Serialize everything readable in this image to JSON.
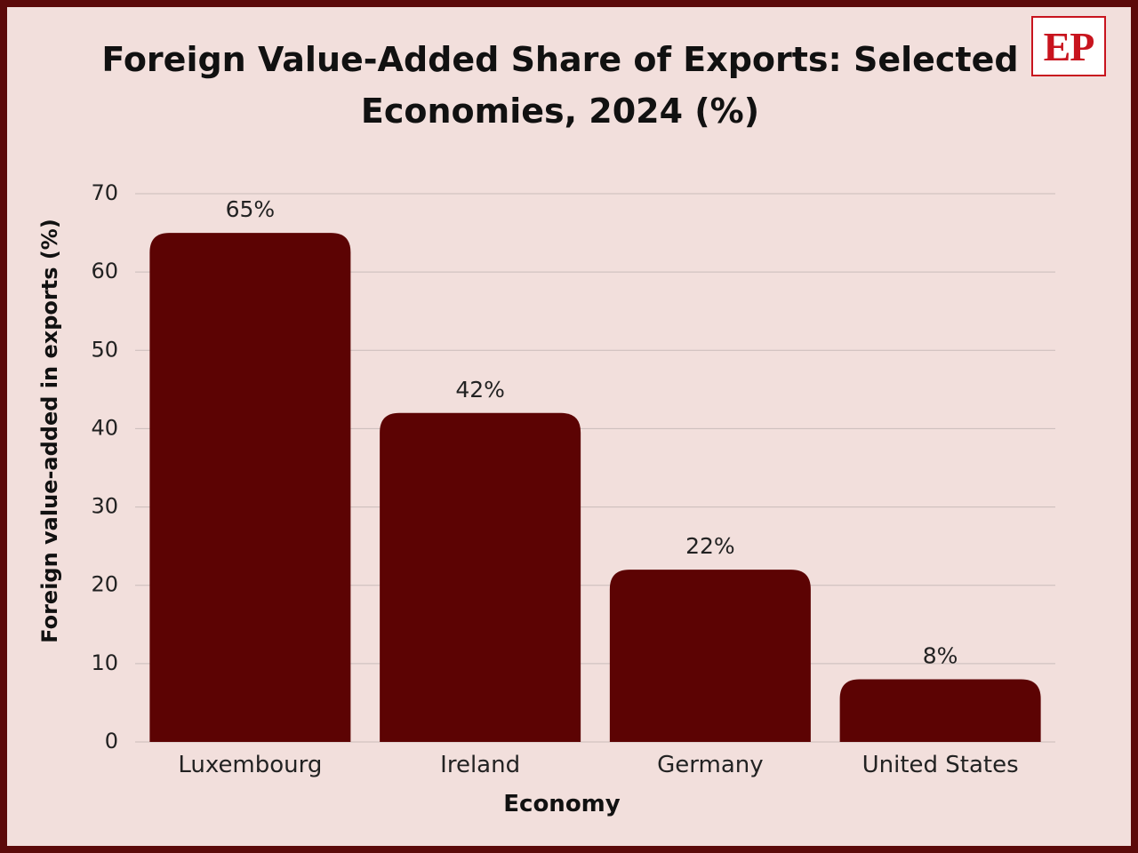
{
  "brand": {
    "logo_text": "EP",
    "color": "#c8141e"
  },
  "chart_data": {
    "type": "bar",
    "title": "Foreign Value-Added Share of Exports: Selected Economies, 2024 (%)",
    "xlabel": "Economy",
    "ylabel": "Foreign value-added in exports (%)",
    "categories": [
      "Luxembourg",
      "Ireland",
      "Germany",
      "United States"
    ],
    "values": [
      65,
      42,
      22,
      8
    ],
    "data_labels": [
      "65%",
      "42%",
      "22%",
      "8%"
    ],
    "ylim": [
      0,
      70
    ],
    "yticks": [
      0,
      10,
      20,
      30,
      40,
      50,
      60,
      70
    ],
    "grid": true,
    "bar_color": "#5c0303",
    "background_color": "#f2dfdc"
  }
}
